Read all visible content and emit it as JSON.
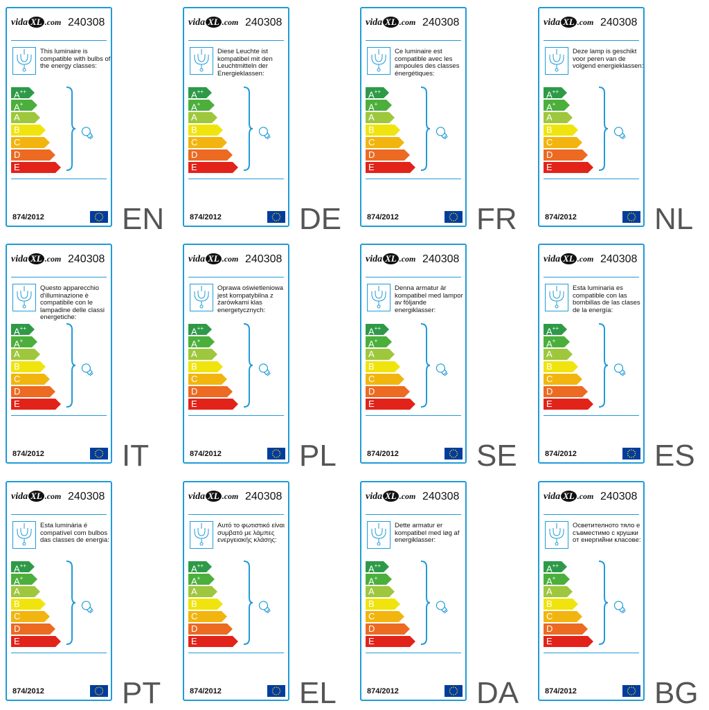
{
  "brand": {
    "name": "vida",
    "xl": "XL",
    "domain": ".com"
  },
  "model": "240308",
  "regulation": "874/2012",
  "icons": {
    "lamp": "chandelier-icon",
    "bulb": "bulb-icon",
    "flag": "eu-flag-icon"
  },
  "classes": [
    {
      "letter": "A",
      "sup": "++",
      "color": "#2e9a47"
    },
    {
      "letter": "A",
      "sup": "+",
      "color": "#4caf3c"
    },
    {
      "letter": "A",
      "sup": "",
      "color": "#9ec73d"
    },
    {
      "letter": "B",
      "sup": "",
      "color": "#f0e40f"
    },
    {
      "letter": "C",
      "sup": "",
      "color": "#f2b50f"
    },
    {
      "letter": "D",
      "sup": "",
      "color": "#ec6a22"
    },
    {
      "letter": "E",
      "sup": "",
      "color": "#e2231a"
    }
  ],
  "labels": [
    {
      "lang": "EN",
      "text": "This luminaire is compatible with bulbs of the energy classes:"
    },
    {
      "lang": "DE",
      "text": "Diese Leuchte ist kompatibel mit den Leuchtmitteln der Energieklassen:"
    },
    {
      "lang": "FR",
      "text": "Ce luminaire est compatible avec les ampoules des classes énergétiques:"
    },
    {
      "lang": "NL",
      "text": "Deze lamp is geschikt voor peren van de volgend energieklassen:"
    },
    {
      "lang": "IT",
      "text": "Questo apparecchio d'illuminazione è compatibile con le lampadine delle classi energetiche:"
    },
    {
      "lang": "PL",
      "text": "Oprawa oświetleniowa jest kompatybilna z żarówkami klas energetycznych:"
    },
    {
      "lang": "SE",
      "text": "Denna armatur är kompatibel med lampor av följande energiklasser:"
    },
    {
      "lang": "ES",
      "text": "Esta luminaria es compatible con las bombillas de las clases de la energía:"
    },
    {
      "lang": "PT",
      "text": "Esta luminária é compatível com bulbos das classes de energia:"
    },
    {
      "lang": "EL",
      "text": "Αυτό το φωτιστικό είναι συμβατό με λάμπες ενεργειακής κλάσης:"
    },
    {
      "lang": "DA",
      "text": "Dette armatur er kompatibel med løg af energiklasser:"
    },
    {
      "lang": "BG",
      "text": "Осветителното тяло е съвместимо с крушки от енергийни класове:"
    }
  ]
}
